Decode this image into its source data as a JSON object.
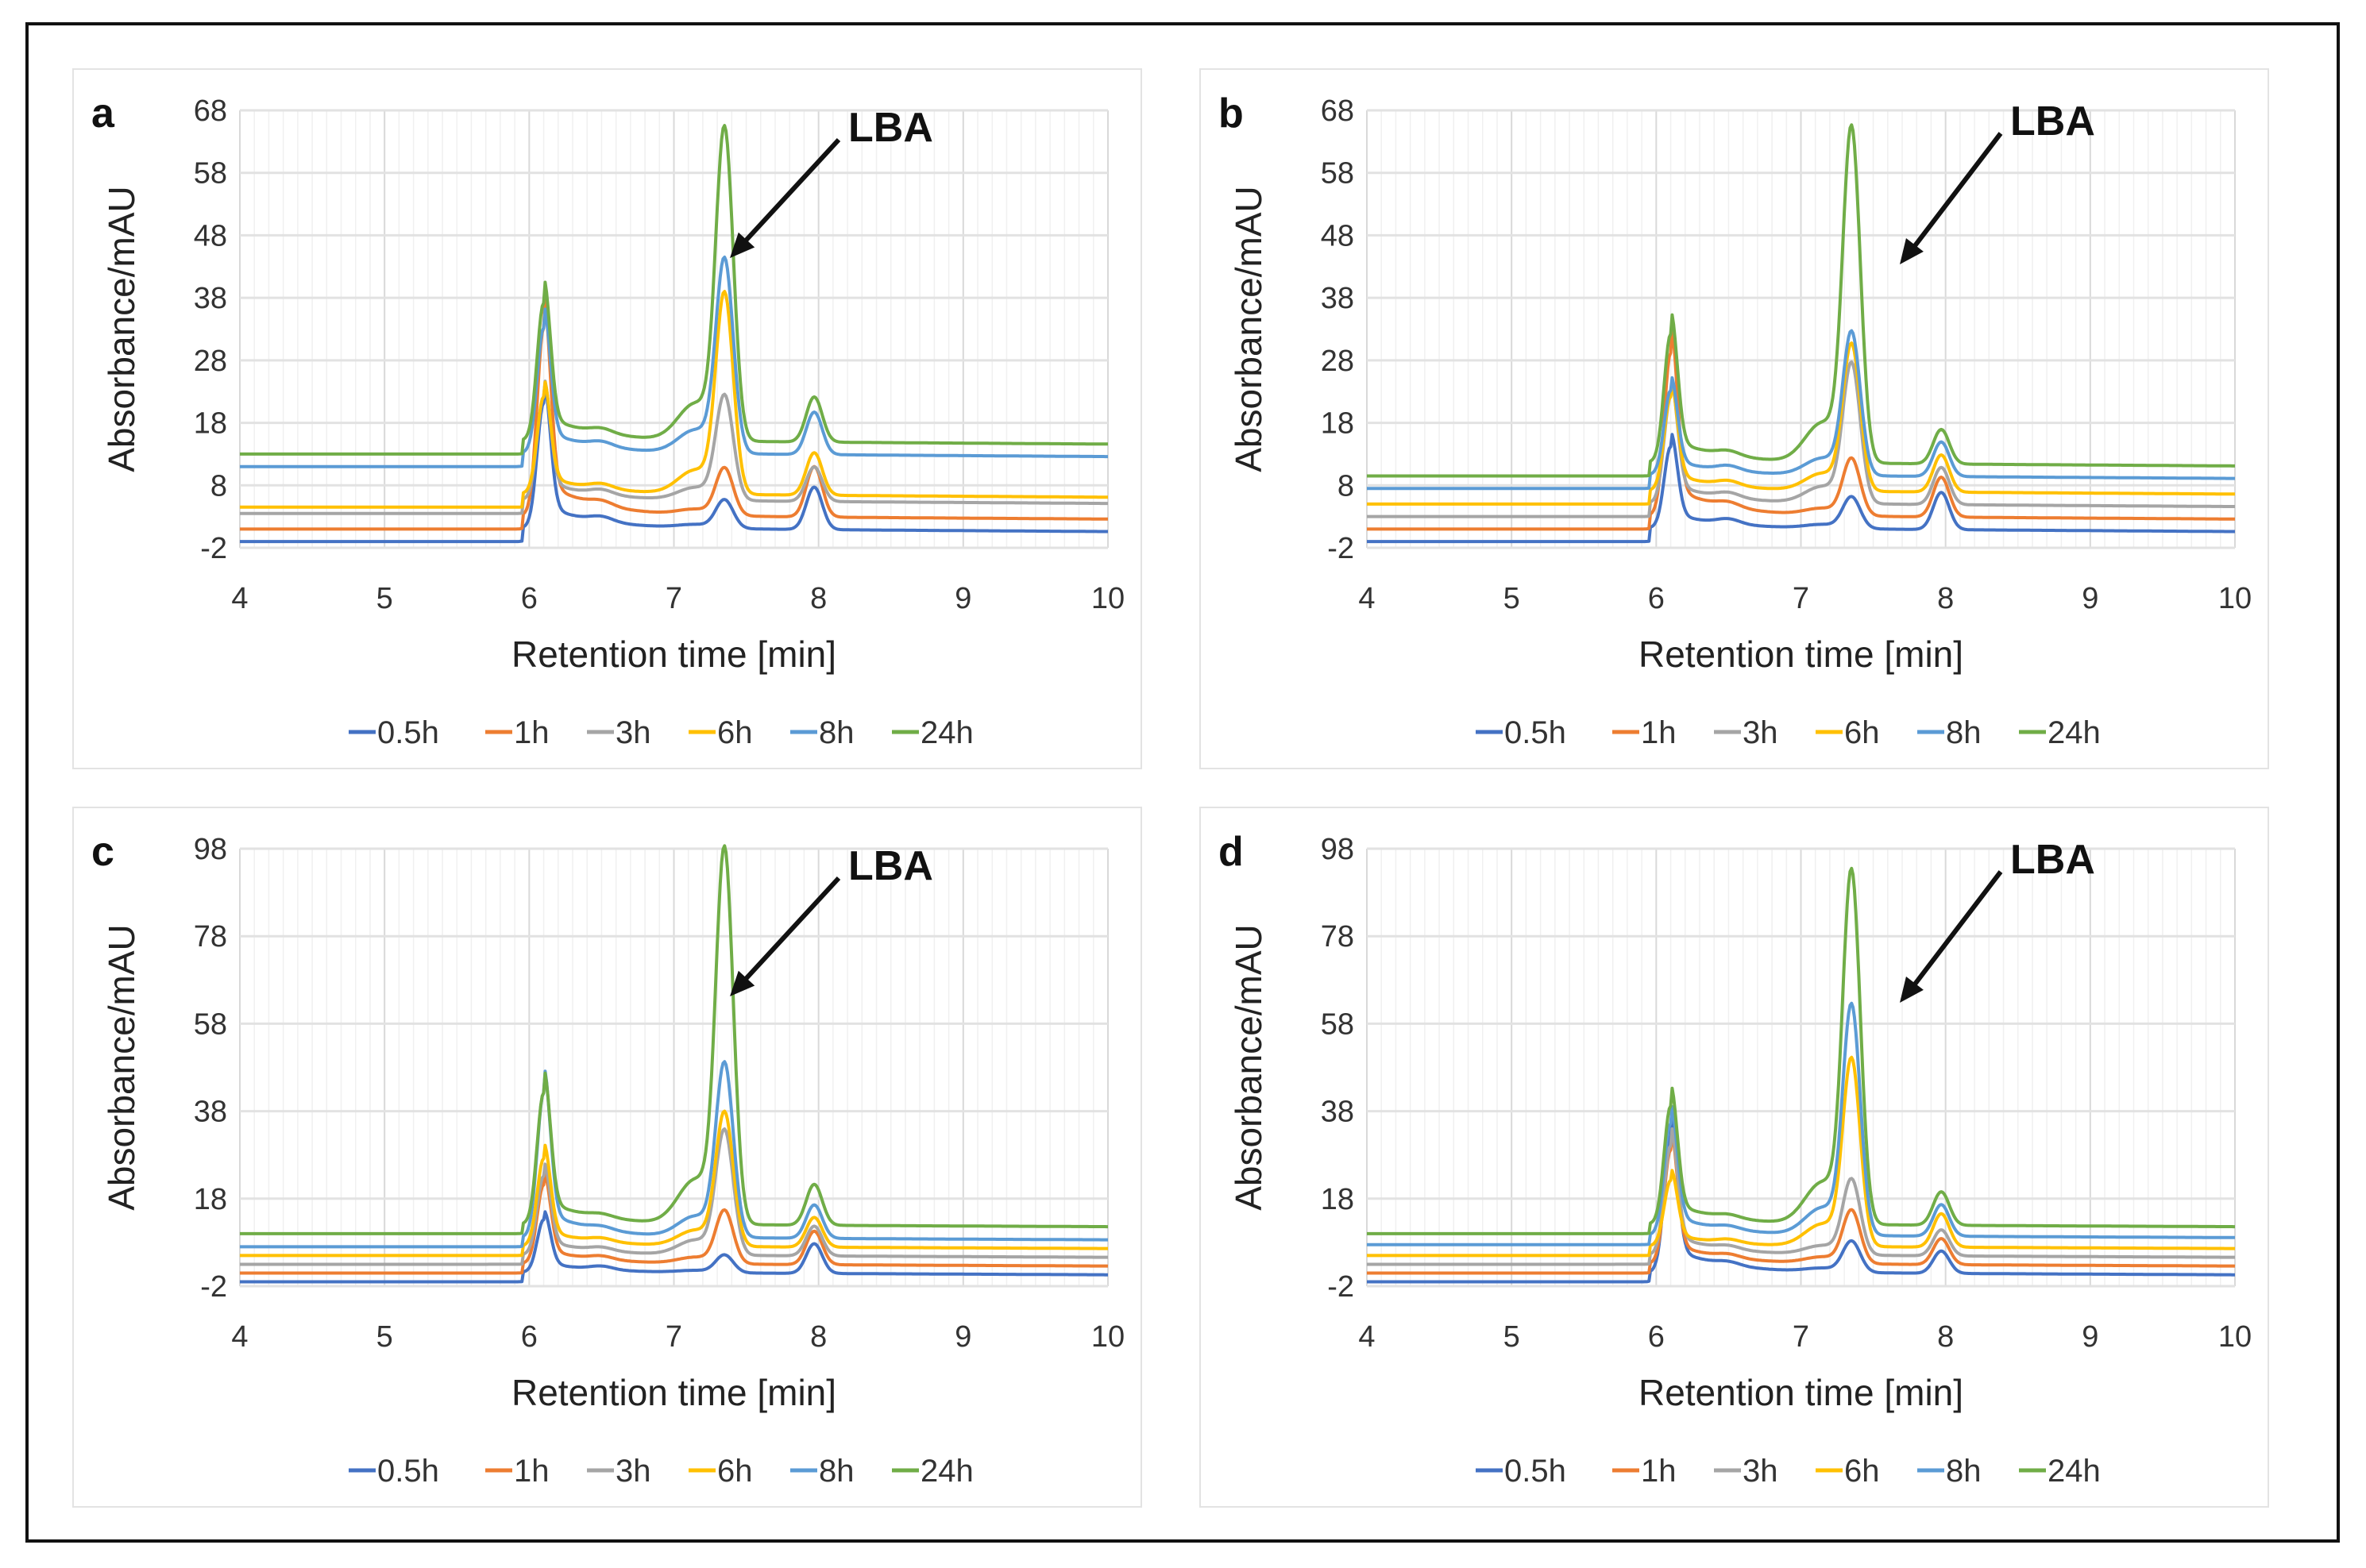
{
  "chart_data": [
    {
      "type": "line",
      "panel": "a",
      "annotation": "LBA",
      "xlabel": "Retention time [min]",
      "ylabel": "Absorbance/mAU",
      "xlim": [
        4,
        10
      ],
      "ylim": [
        -2,
        68
      ],
      "xticks": [
        "4",
        "5",
        "6",
        "7",
        "8",
        "9",
        "10"
      ],
      "yticks": [
        "-2",
        "8",
        "18",
        "28",
        "38",
        "48",
        "58",
        "68"
      ],
      "peaks_at_min": [
        6.1,
        7.35,
        7.97
      ],
      "series": [
        {
          "name": "0.5h",
          "baseline": -1,
          "peaks": [
            19,
            3.5,
            7
          ]
        },
        {
          "name": "1h",
          "baseline": 1,
          "peaks": [
            31,
            8.5,
            10.5
          ]
        },
        {
          "name": "3h",
          "baseline": 3.5,
          "peaks": [
            20,
            20,
            10
          ]
        },
        {
          "name": "6h",
          "baseline": 4.5,
          "peaks": [
            20,
            36,
            12.5
          ]
        },
        {
          "name": "8h",
          "baseline": 11,
          "peaks": [
            31,
            41.5,
            19
          ]
        },
        {
          "name": "24h",
          "baseline": 13,
          "peaks": [
            35,
            62,
            21.5
          ]
        }
      ]
    },
    {
      "type": "line",
      "panel": "b",
      "annotation": "LBA",
      "xlabel": "Retention time [min]",
      "ylabel": "Absorbance/mAU",
      "xlim": [
        4,
        10
      ],
      "ylim": [
        -2,
        68
      ],
      "xticks": [
        "4",
        "5",
        "6",
        "7",
        "8",
        "9",
        "10"
      ],
      "yticks": [
        "-2",
        "8",
        "18",
        "28",
        "38",
        "48",
        "58",
        "68"
      ],
      "peaks_at_min": [
        6.1,
        7.35,
        7.97
      ],
      "series": [
        {
          "name": "0.5h",
          "baseline": -1,
          "peaks": [
            12,
            4,
            6
          ]
        },
        {
          "name": "1h",
          "baseline": 1,
          "peaks": [
            27,
            10,
            8.5
          ]
        },
        {
          "name": "3h",
          "baseline": 3,
          "peaks": [
            20,
            25,
            10
          ]
        },
        {
          "name": "6h",
          "baseline": 5,
          "peaks": [
            20,
            28,
            12
          ]
        },
        {
          "name": "8h",
          "baseline": 7.5,
          "peaks": [
            21,
            30,
            14
          ]
        },
        {
          "name": "24h",
          "baseline": 9.5,
          "peaks": [
            30,
            62,
            16
          ]
        }
      ]
    },
    {
      "type": "line",
      "panel": "c",
      "annotation": "LBA",
      "xlabel": "Retention time [min]",
      "ylabel": "Absorbance/mAU",
      "xlim": [
        4,
        10
      ],
      "ylim": [
        -2,
        98
      ],
      "xticks": [
        "4",
        "5",
        "6",
        "7",
        "8",
        "9",
        "10"
      ],
      "yticks": [
        "-2",
        "18",
        "38",
        "58",
        "78",
        "98"
      ],
      "peaks_at_min": [
        6.1,
        7.35,
        7.97
      ],
      "series": [
        {
          "name": "0.5h",
          "baseline": -1,
          "peaks": [
            11,
            3,
            7
          ]
        },
        {
          "name": "1h",
          "baseline": 1,
          "peaks": [
            19,
            13,
            10
          ]
        },
        {
          "name": "3h",
          "baseline": 3,
          "peaks": [
            21,
            31,
            11
          ]
        },
        {
          "name": "6h",
          "baseline": 5,
          "peaks": [
            25,
            35,
            13
          ]
        },
        {
          "name": "8h",
          "baseline": 7,
          "peaks": [
            40,
            46,
            16
          ]
        },
        {
          "name": "24h",
          "baseline": 10,
          "peaks": [
            40,
            94,
            21
          ]
        }
      ]
    },
    {
      "type": "line",
      "panel": "d",
      "annotation": "LBA",
      "xlabel": "Retention time [min]",
      "ylabel": "Absorbance/mAU",
      "xlim": [
        4,
        10
      ],
      "ylim": [
        -2,
        98
      ],
      "xticks": [
        "4",
        "5",
        "6",
        "7",
        "8",
        "9",
        "10"
      ],
      "yticks": [
        "-2",
        "18",
        "38",
        "58",
        "78",
        "98"
      ],
      "peaks_at_min": [
        6.1,
        7.35,
        7.97
      ],
      "series": [
        {
          "name": "0.5h",
          "baseline": -1,
          "peaks": [
            30,
            6,
            5
          ]
        },
        {
          "name": "1h",
          "baseline": 1,
          "peaks": [
            27,
            13,
            8
          ]
        },
        {
          "name": "3h",
          "baseline": 3,
          "peaks": [
            28,
            20,
            10
          ]
        },
        {
          "name": "6h",
          "baseline": 5,
          "peaks": [
            20,
            47,
            14
          ]
        },
        {
          "name": "8h",
          "baseline": 7.5,
          "peaks": [
            33,
            59,
            16
          ]
        },
        {
          "name": "24h",
          "baseline": 10,
          "peaks": [
            37,
            89,
            19
          ]
        }
      ]
    }
  ],
  "colors": {
    "0.5h": "#4472C4",
    "1h": "#ED7D31",
    "3h": "#A5A5A5",
    "6h": "#FFC000",
    "8h": "#5B9BD5",
    "24h": "#70AD47"
  }
}
